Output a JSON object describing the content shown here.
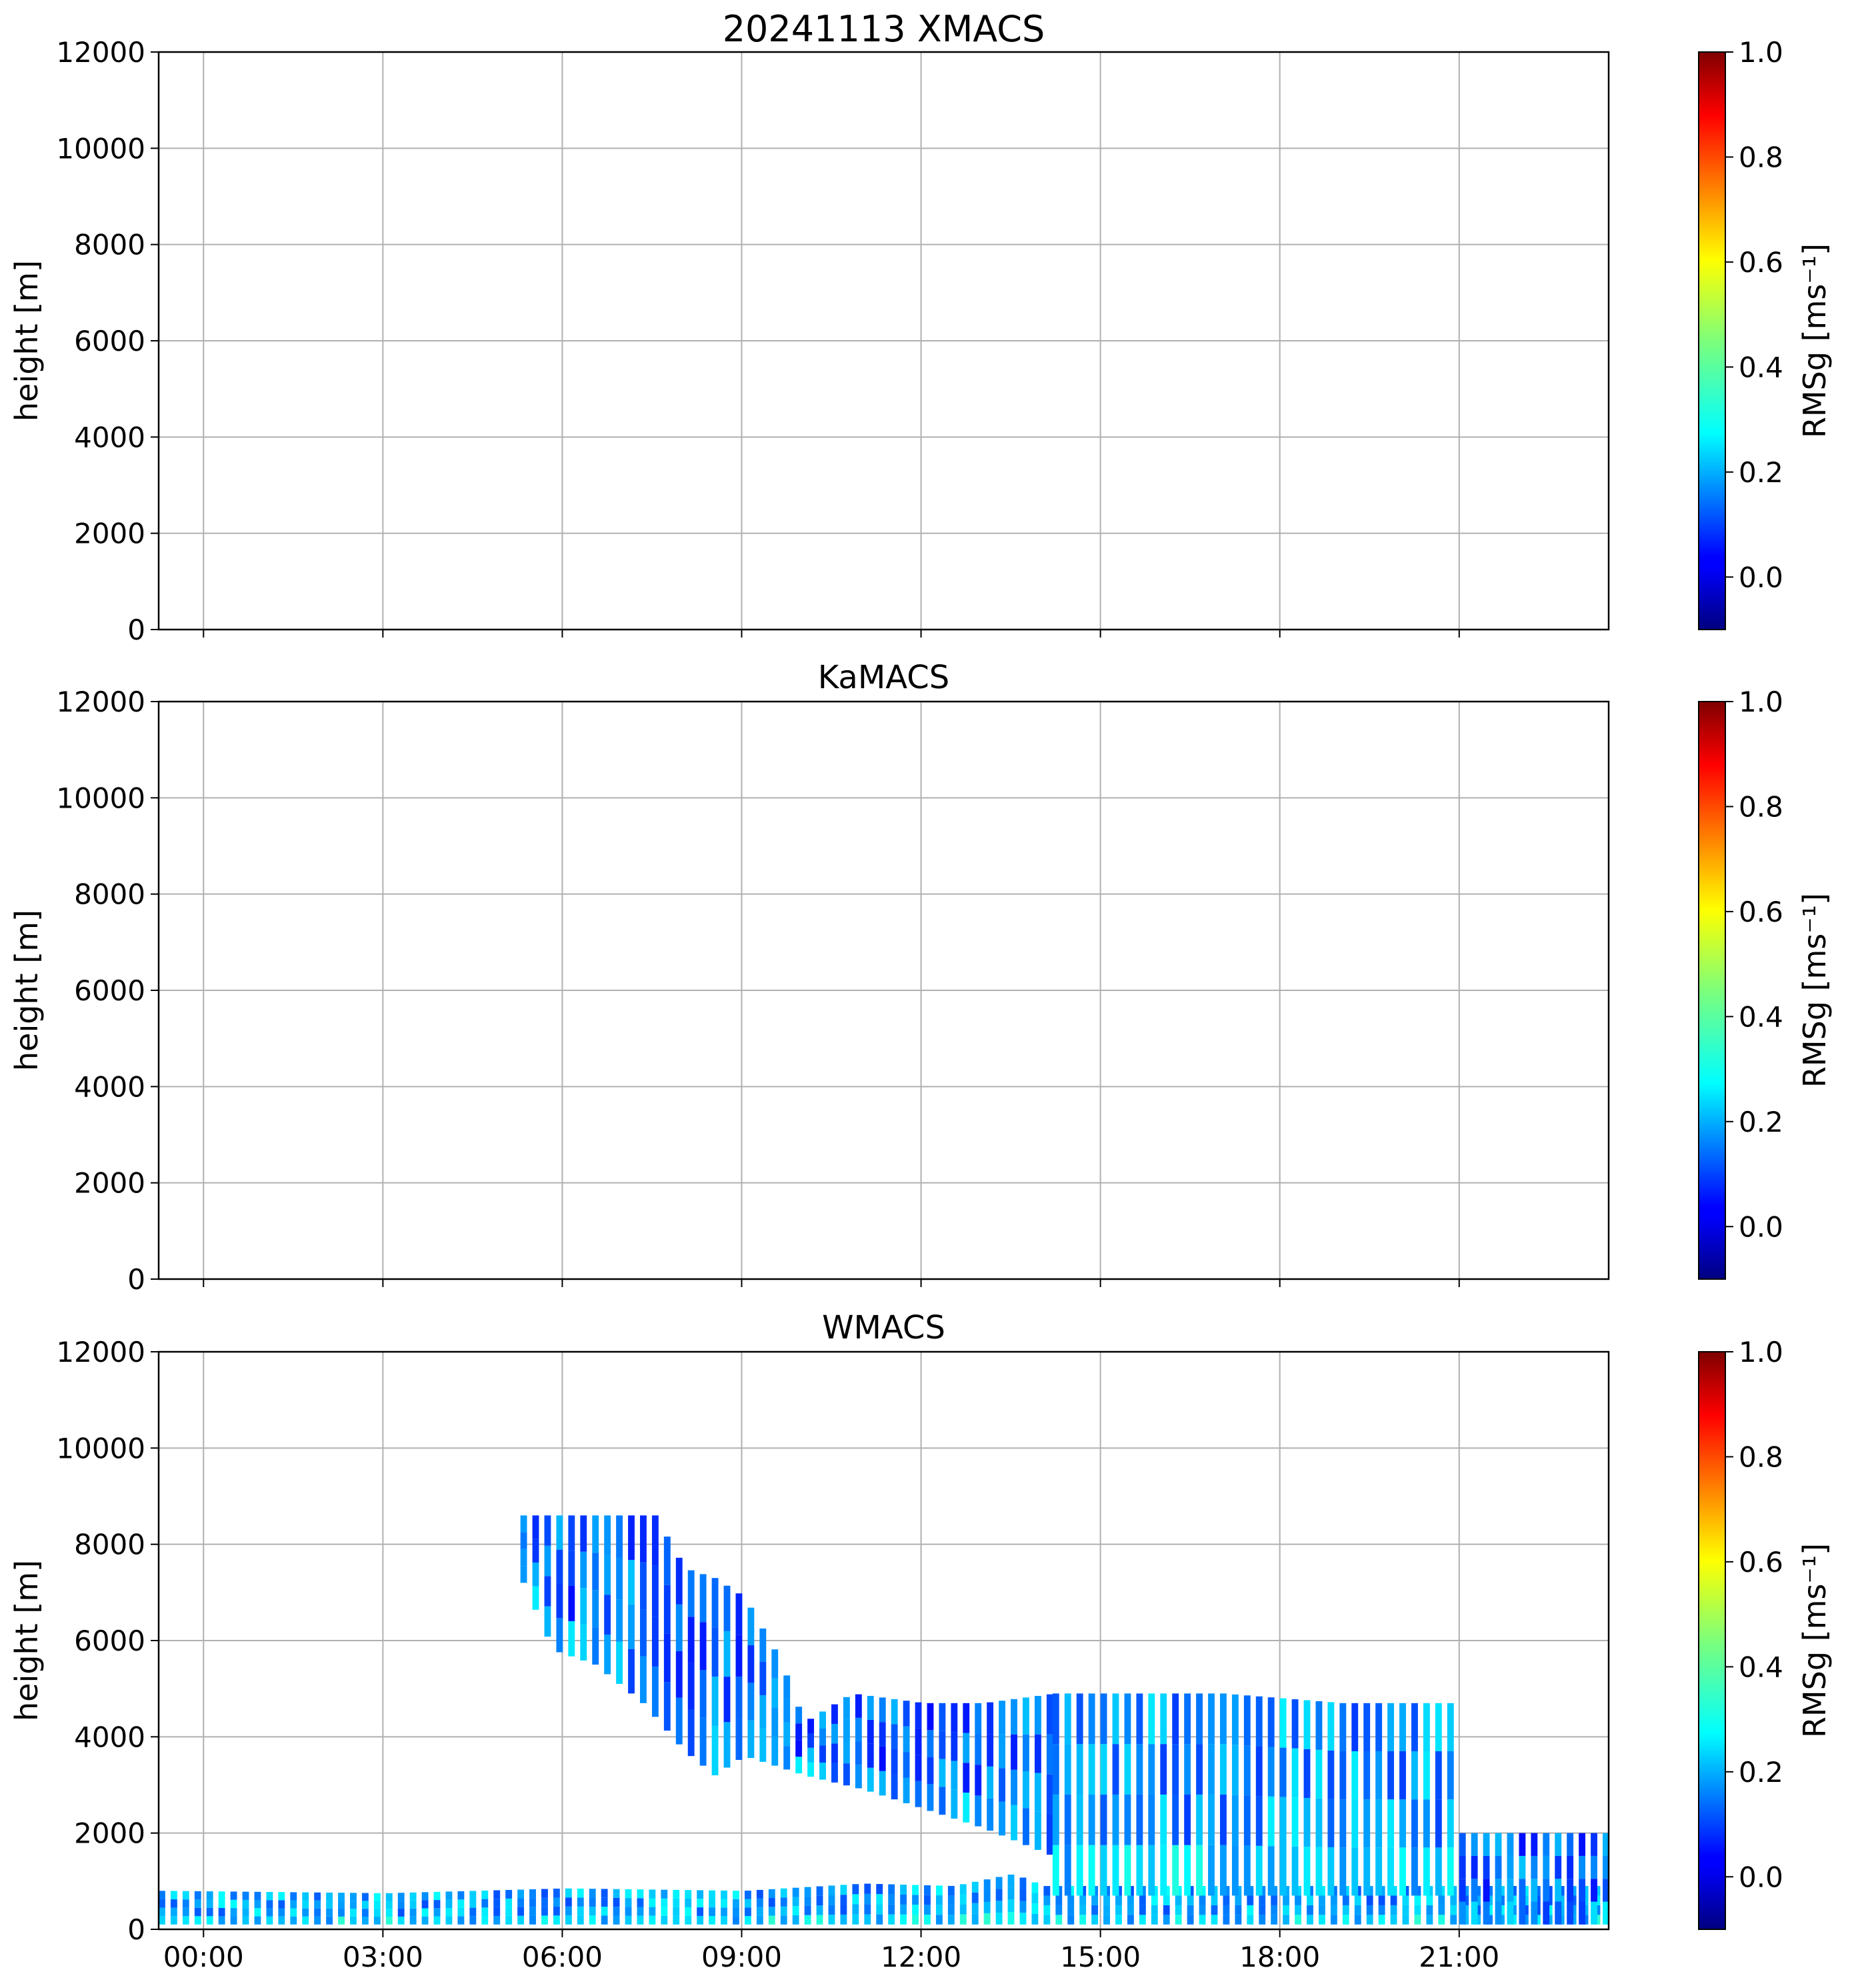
{
  "chart_data": [
    {
      "type": "heatmap",
      "title": "20241113 XMACS",
      "xlabel": "",
      "ylabel": "height [m]",
      "ylim": [
        0,
        12000
      ],
      "xlim": [
        -0.75,
        23.5
      ],
      "grid": true,
      "yticks": [
        "0",
        "2000",
        "4000",
        "6000",
        "8000",
        "10000",
        "12000"
      ],
      "xtick_hours": [
        0,
        3,
        6,
        9,
        12,
        15,
        18,
        21
      ],
      "xticks": [],
      "colorbar": {
        "label": "RMSg [ms⁻¹]",
        "range": [
          -0.1,
          1.0
        ],
        "ticks": [
          "0.0",
          "0.2",
          "0.4",
          "0.6",
          "0.8",
          "1.0"
        ],
        "cmap": "jet"
      },
      "data": []
    },
    {
      "type": "heatmap",
      "title": "KaMACS",
      "xlabel": "",
      "ylabel": "height [m]",
      "ylim": [
        0,
        12000
      ],
      "xlim": [
        -0.75,
        23.5
      ],
      "grid": true,
      "yticks": [
        "0",
        "2000",
        "4000",
        "6000",
        "8000",
        "10000",
        "12000"
      ],
      "xtick_hours": [
        0,
        3,
        6,
        9,
        12,
        15,
        18,
        21
      ],
      "xticks": [],
      "colorbar": {
        "label": "RMSg [ms⁻¹]",
        "range": [
          -0.1,
          1.0
        ],
        "ticks": [
          "0.0",
          "0.2",
          "0.4",
          "0.6",
          "0.8",
          "1.0"
        ],
        "cmap": "jet"
      },
      "data": []
    },
    {
      "type": "heatmap",
      "title": "WMACS",
      "xlabel": "",
      "ylabel": "height [m]",
      "ylim": [
        0,
        12000
      ],
      "xlim": [
        -0.75,
        23.5
      ],
      "grid": true,
      "yticks": [
        "0",
        "2000",
        "4000",
        "6000",
        "8000",
        "10000",
        "12000"
      ],
      "xtick_hours": [
        0,
        3,
        6,
        9,
        12,
        15,
        18,
        21
      ],
      "xticks": [
        "00:00",
        "03:00",
        "06:00",
        "09:00",
        "12:00",
        "15:00",
        "18:00",
        "21:00"
      ],
      "colorbar": {
        "label": "RMSg [ms⁻¹]",
        "range": [
          -0.1,
          1.0
        ],
        "ticks": [
          "0.0",
          "0.2",
          "0.4",
          "0.6",
          "0.8",
          "1.0"
        ],
        "cmap": "jet"
      },
      "layers": [
        {
          "name": "boundary-layer",
          "time_range": [
            -0.75,
            23.5
          ],
          "bottom_m": 100,
          "top_profile": [
            [
              -0.75,
              800
            ],
            [
              3.0,
              750
            ],
            [
              6.0,
              850
            ],
            [
              9.0,
              800
            ],
            [
              11.0,
              950
            ],
            [
              12.5,
              900
            ],
            [
              13.5,
              1150
            ],
            [
              14.0,
              900
            ]
          ],
          "value": 0.22
        },
        {
          "name": "upper-cloud-descending",
          "time_range": [
            5.3,
            14.2
          ],
          "bottom_profile": [
            [
              5.3,
              7200
            ],
            [
              5.8,
              5800
            ],
            [
              6.5,
              5500
            ],
            [
              7.3,
              4700
            ],
            [
              8.0,
              3700
            ],
            [
              8.5,
              3200
            ],
            [
              9.0,
              3600
            ],
            [
              10.0,
              3200
            ],
            [
              11.0,
              2900
            ],
            [
              12.0,
              2500
            ],
            [
              13.0,
              2100
            ],
            [
              14.2,
              1500
            ]
          ],
          "top_profile": [
            [
              5.3,
              8600
            ],
            [
              7.5,
              8600
            ],
            [
              8.0,
              7500
            ],
            [
              8.5,
              7300
            ],
            [
              9.0,
              6900
            ],
            [
              9.6,
              5600
            ],
            [
              10.0,
              4300
            ],
            [
              10.8,
              4900
            ],
            [
              12.0,
              4700
            ],
            [
              13.0,
              4700
            ],
            [
              14.2,
              4900
            ]
          ],
          "value": 0.15
        },
        {
          "name": "mid-cloud-layer",
          "time_range": [
            14.2,
            21.0
          ],
          "bottom_m": 700,
          "top_profile": [
            [
              14.2,
              4900
            ],
            [
              17.0,
              4900
            ],
            [
              19.0,
              4700
            ],
            [
              20.9,
              4700
            ],
            [
              21.0,
              3800
            ]
          ],
          "value": 0.2
        },
        {
          "name": "low-cloud-tail",
          "time_range": [
            21.0,
            23.5
          ],
          "bottom_m": 100,
          "top_m": 2000,
          "value": 0.15
        }
      ]
    }
  ]
}
